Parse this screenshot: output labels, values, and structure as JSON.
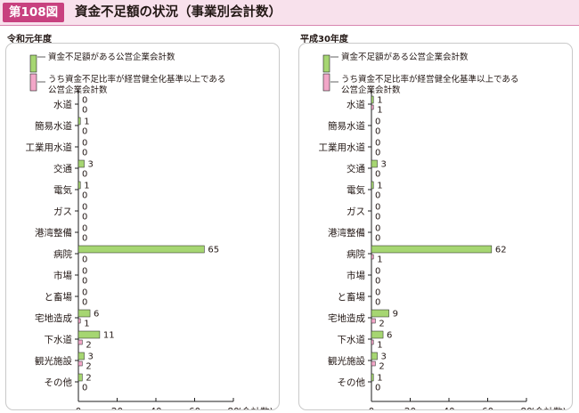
{
  "figure": {
    "number": "第108図",
    "title": "資金不足額の状況（事業別会計数）"
  },
  "legend": {
    "items": [
      "資金不足額がある公営企業会計数",
      "うち資金不足比率が経営健全化基準以上である公営企業会計数"
    ],
    "lines": [
      [
        "資金不足額がある公営企業会計数"
      ],
      [
        "うち資金不足比率が経営健全化基準以上である",
        "公営企業会計数"
      ]
    ]
  },
  "colors": {
    "green": "#a6d672",
    "pink": "#f2a7c8",
    "accent": "#c8417f",
    "header_bg": "#f8e1ec"
  },
  "chart_data": [
    {
      "type": "bar",
      "orientation": "horizontal",
      "title": "令和元年度",
      "categories": [
        "水道",
        "簡易水道",
        "工業用水道",
        "交通",
        "電気",
        "ガス",
        "港湾整備",
        "病院",
        "市場",
        "と畜場",
        "宅地造成",
        "下水道",
        "観光施設",
        "その他"
      ],
      "series": [
        {
          "name": "資金不足額がある公営企業会計数",
          "color": "#a6d672",
          "values": [
            0,
            1,
            0,
            3,
            1,
            0,
            0,
            65,
            0,
            0,
            6,
            11,
            3,
            2
          ]
        },
        {
          "name": "うち資金不足比率が経営健全化基準以上である公営企業会計数",
          "color": "#f2a7c8",
          "values": [
            0,
            0,
            0,
            0,
            0,
            0,
            0,
            0,
            0,
            0,
            1,
            2,
            2,
            0
          ]
        }
      ],
      "xlim": [
        0,
        80
      ],
      "xticks": [
        "0",
        "20",
        "40",
        "60",
        "80"
      ],
      "xlabel": "(会計数)"
    },
    {
      "type": "bar",
      "orientation": "horizontal",
      "title": "平成30年度",
      "categories": [
        "水道",
        "簡易水道",
        "工業用水道",
        "交通",
        "電気",
        "ガス",
        "港湾整備",
        "病院",
        "市場",
        "と畜場",
        "宅地造成",
        "下水道",
        "観光施設",
        "その他"
      ],
      "series": [
        {
          "name": "資金不足額がある公営企業会計数",
          "color": "#a6d672",
          "values": [
            1,
            0,
            0,
            3,
            1,
            0,
            0,
            62,
            0,
            0,
            9,
            6,
            3,
            1
          ]
        },
        {
          "name": "うち資金不足比率が経営健全化基準以上である公営企業会計数",
          "color": "#f2a7c8",
          "values": [
            1,
            0,
            0,
            0,
            0,
            0,
            0,
            1,
            0,
            0,
            2,
            1,
            2,
            0
          ]
        }
      ],
      "xlim": [
        0,
        80
      ],
      "xticks": [
        "0",
        "20",
        "40",
        "60",
        "80"
      ],
      "xlabel": "(会計数)"
    }
  ]
}
